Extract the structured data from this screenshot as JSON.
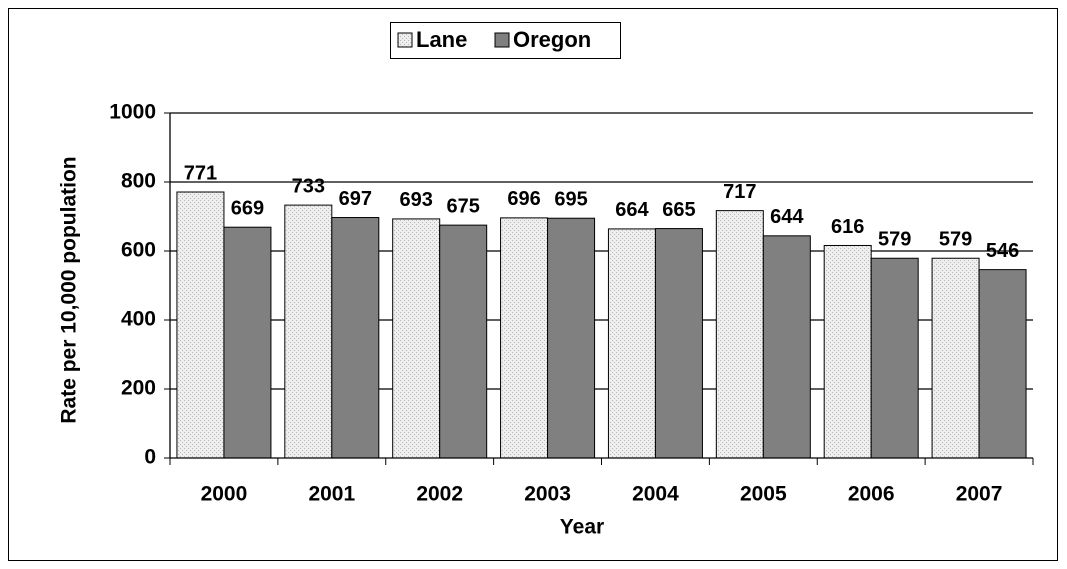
{
  "chart_data": {
    "type": "bar",
    "x_label": "Year",
    "y_label": "Rate per 10,000 population",
    "categories": [
      "2000",
      "2001",
      "2002",
      "2003",
      "2004",
      "2005",
      "2006",
      "2007"
    ],
    "series": [
      {
        "name": "Lane",
        "color": "#e6e6e6",
        "values": [
          771,
          733,
          693,
          696,
          664,
          717,
          616,
          579
        ]
      },
      {
        "name": "Oregon",
        "color": "#808080",
        "values": [
          669,
          697,
          675,
          695,
          665,
          644,
          579,
          546
        ]
      }
    ],
    "ylim": [
      0,
      1000
    ],
    "yticks": [
      0,
      200,
      400,
      600,
      800,
      1000
    ],
    "grid": true,
    "legend": "top"
  }
}
